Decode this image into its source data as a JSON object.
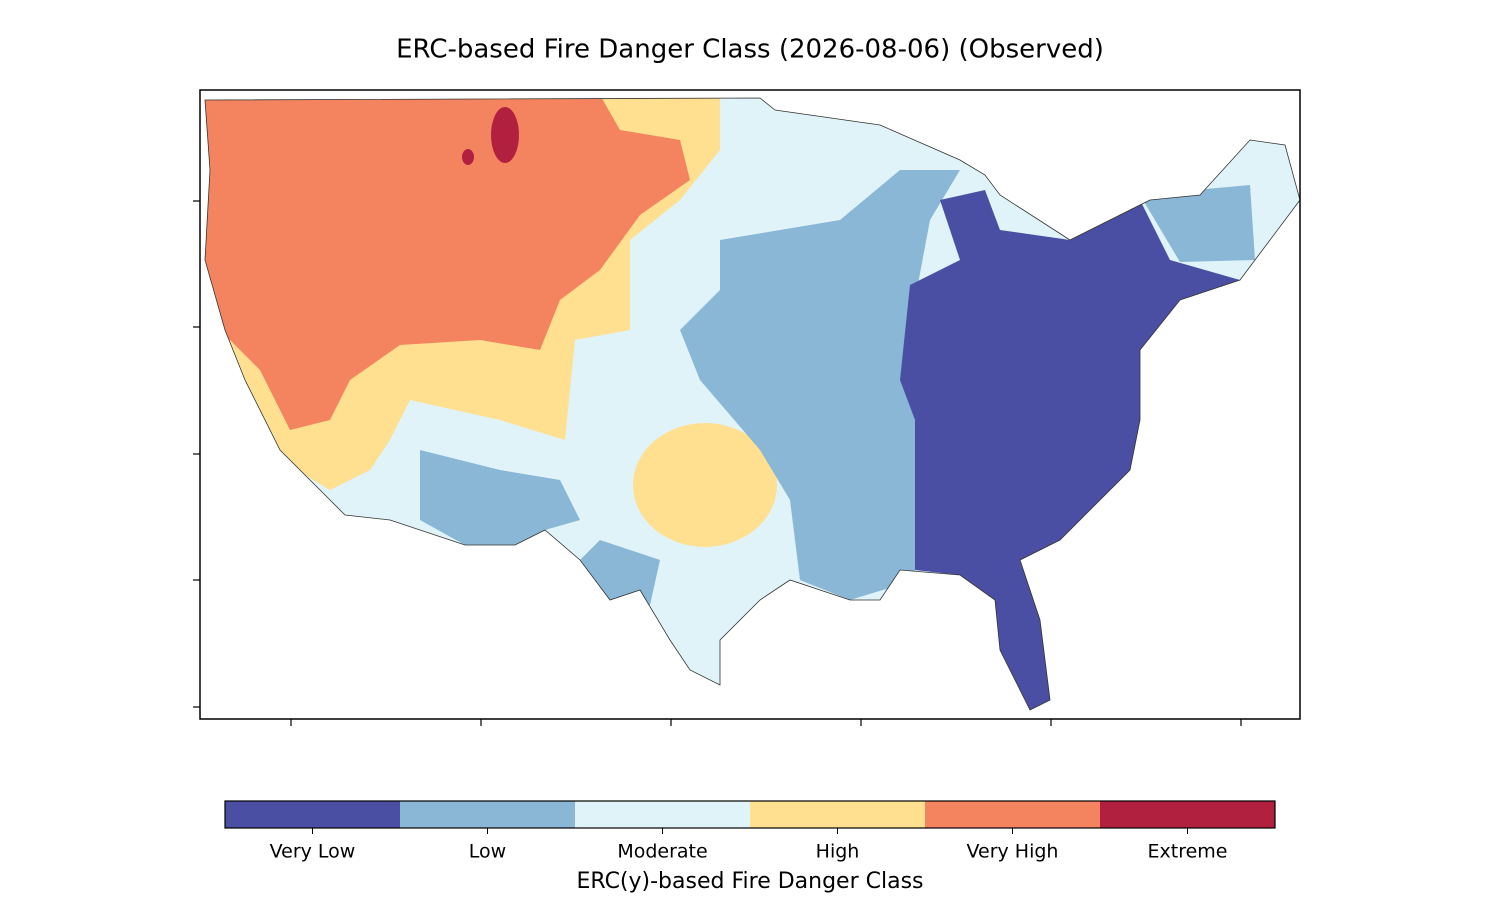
{
  "title": "ERC-based Fire Danger Class (2026-08-06) (Observed)",
  "colorbar": {
    "label": "ERC(y)-based Fire Danger Class",
    "classes": [
      {
        "name": "Very Low",
        "color": "#4a4fa3"
      },
      {
        "name": "Low",
        "color": "#8ab7d6"
      },
      {
        "name": "Moderate",
        "color": "#e0f3f8"
      },
      {
        "name": "High",
        "color": "#fee090"
      },
      {
        "name": "Very High",
        "color": "#f4845f"
      },
      {
        "name": "Extreme",
        "color": "#b2203f"
      }
    ]
  }
}
